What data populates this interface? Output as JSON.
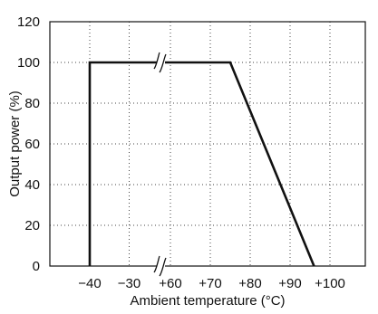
{
  "chart_data": {
    "type": "line",
    "xlabel": "Ambient temperature (°C)",
    "ylabel": "Output power (%)",
    "ylim": [
      0,
      120
    ],
    "y_ticks": [
      "0",
      "20",
      "40",
      "60",
      "80",
      "100",
      "120"
    ],
    "x_ticks": [
      "−40",
      "−30",
      "+60",
      "+70",
      "+80",
      "+90",
      "+100"
    ],
    "axis_break": {
      "between": [
        "−30",
        "+60"
      ]
    },
    "grid": "dotted",
    "series": [
      {
        "points": [
          {
            "x": -40,
            "y": 0
          },
          {
            "x": -40,
            "y": 100
          },
          {
            "x": 75,
            "y": 100
          },
          {
            "x": 96,
            "y": 0
          }
        ]
      }
    ]
  }
}
